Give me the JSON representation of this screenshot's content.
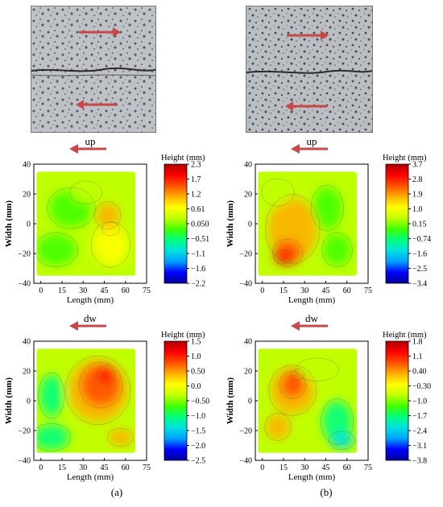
{
  "colors": {
    "arrow": "#c8484a",
    "colormap": [
      "#000099",
      "#0000ff",
      "#00a0ff",
      "#00e0e0",
      "#00ff80",
      "#40ff00",
      "#c0ff00",
      "#ffff00",
      "#ffb000",
      "#ff5000",
      "#ff0000",
      "#b00000"
    ]
  },
  "panels": [
    {
      "direction_label": "up",
      "legend_title": "Height (mm)",
      "colorbar_ticks": [
        "2.3",
        "1.7",
        "1.2",
        "0.61",
        "0.050",
        "−0.51",
        "−1.1",
        "−1.6",
        "−2.2"
      ],
      "xlabel": "Length (mm)",
      "ylabel": "Width (mm)",
      "x_ticks": [
        "0",
        "15",
        "30",
        "45",
        "60",
        "75"
      ],
      "y_ticks": [
        "40",
        "20",
        "0",
        "−20",
        "−40"
      ]
    },
    {
      "direction_label": "up",
      "legend_title": "Height (mm)",
      "colorbar_ticks": [
        "3.7",
        "2.8",
        "1.9",
        "1.0",
        "0.15",
        "−0.74",
        "−1.6",
        "−2.5",
        "−3.4"
      ],
      "xlabel": "Length (mm)",
      "ylabel": "Width (mm)",
      "x_ticks": [
        "0",
        "15",
        "30",
        "45",
        "60",
        "75"
      ],
      "y_ticks": [
        "40",
        "20",
        "0",
        "−20",
        "−40"
      ]
    },
    {
      "direction_label": "dw",
      "legend_title": "Height (mm)",
      "colorbar_ticks": [
        "1.5",
        "1.0",
        "0.50",
        "0.0",
        "−0.50",
        "−1.0",
        "−1.5",
        "−2.0",
        "−2.5"
      ],
      "xlabel": "Length (mm)",
      "ylabel": "Width (mm)",
      "x_ticks": [
        "0",
        "15",
        "30",
        "45",
        "60",
        "75"
      ],
      "y_ticks": [
        "40",
        "20",
        "0",
        "−20",
        "−40"
      ]
    },
    {
      "direction_label": "dw",
      "legend_title": "Height (mm)",
      "colorbar_ticks": [
        "1.8",
        "1.1",
        "0.40",
        "−0.30",
        "−1.0",
        "−1.7",
        "−2.4",
        "−3.1",
        "−3.8"
      ],
      "xlabel": "Length (mm)",
      "ylabel": "Width (mm)",
      "x_ticks": [
        "0",
        "15",
        "30",
        "45",
        "60",
        "75"
      ],
      "y_ticks": [
        "40",
        "20",
        "0",
        "−20",
        "−40"
      ]
    }
  ],
  "captions": {
    "a": "(a)",
    "b": "(b)"
  }
}
